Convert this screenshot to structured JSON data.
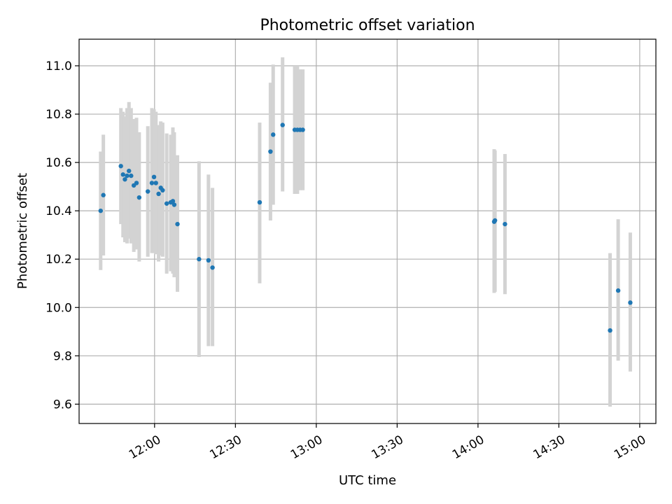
{
  "chart_data": {
    "type": "scatter",
    "title": "Photometric offset variation",
    "xlabel": "UTC time",
    "ylabel": "Photometric offset",
    "xlim": [
      "11:32",
      "15:06"
    ],
    "ylim": [
      9.52,
      11.11
    ],
    "xticks": [
      "12:00",
      "12:30",
      "13:00",
      "13:30",
      "14:00",
      "14:30",
      "15:00"
    ],
    "yticks": [
      9.6,
      9.8,
      10.0,
      10.2,
      10.4,
      10.6,
      10.8,
      11.0
    ],
    "grid": true,
    "point_color": "#1f77b4",
    "errorbar_color": "#d3d3d3",
    "points": [
      {
        "x": "11:40",
        "y": 10.4,
        "ylow": 10.155,
        "yhigh": 10.645
      },
      {
        "x": "11:41",
        "y": 10.465,
        "ylow": 10.215,
        "yhigh": 10.715
      },
      {
        "x": "11:47.5",
        "y": 10.585,
        "ylow": 10.345,
        "yhigh": 10.825
      },
      {
        "x": "11:48.3",
        "y": 10.55,
        "ylow": 10.29,
        "yhigh": 10.81
      },
      {
        "x": "11:49",
        "y": 10.53,
        "ylow": 10.27,
        "yhigh": 10.79
      },
      {
        "x": "11:49.8",
        "y": 10.545,
        "ylow": 10.265,
        "yhigh": 10.825
      },
      {
        "x": "11:50.5",
        "y": 10.565,
        "ylow": 10.285,
        "yhigh": 10.85
      },
      {
        "x": "11:51.3",
        "y": 10.545,
        "ylow": 10.265,
        "yhigh": 10.825
      },
      {
        "x": "11:52.3",
        "y": 10.505,
        "ylow": 10.23,
        "yhigh": 10.78
      },
      {
        "x": "11:53.3",
        "y": 10.515,
        "ylow": 10.24,
        "yhigh": 10.785
      },
      {
        "x": "11:54.3",
        "y": 10.455,
        "ylow": 10.19,
        "yhigh": 10.725
      },
      {
        "x": "11:57.5",
        "y": 10.48,
        "ylow": 10.21,
        "yhigh": 10.75
      },
      {
        "x": "11:59",
        "y": 10.515,
        "ylow": 10.225,
        "yhigh": 10.825
      },
      {
        "x": "11:59.8",
        "y": 10.54,
        "ylow": 10.225,
        "yhigh": 10.82
      },
      {
        "x": "12:00.5",
        "y": 10.515,
        "ylow": 10.22,
        "yhigh": 10.81
      },
      {
        "x": "12:01.5",
        "y": 10.47,
        "ylow": 10.19,
        "yhigh": 10.755
      },
      {
        "x": "12:02.3",
        "y": 10.495,
        "ylow": 10.215,
        "yhigh": 10.77
      },
      {
        "x": "12:03",
        "y": 10.485,
        "ylow": 10.21,
        "yhigh": 10.765
      },
      {
        "x": "12:04.5",
        "y": 10.43,
        "ylow": 10.14,
        "yhigh": 10.72
      },
      {
        "x": "12:06",
        "y": 10.435,
        "ylow": 10.15,
        "yhigh": 10.715
      },
      {
        "x": "12:06.8",
        "y": 10.44,
        "ylow": 10.14,
        "yhigh": 10.745
      },
      {
        "x": "12:07.3",
        "y": 10.425,
        "ylow": 10.125,
        "yhigh": 10.725
      },
      {
        "x": "12:08.5",
        "y": 10.345,
        "ylow": 10.065,
        "yhigh": 10.63
      },
      {
        "x": "12:16.5",
        "y": 10.2,
        "ylow": 9.795,
        "yhigh": 10.605
      },
      {
        "x": "12:20",
        "y": 10.195,
        "ylow": 9.84,
        "yhigh": 10.55
      },
      {
        "x": "12:21.5",
        "y": 10.165,
        "ylow": 9.84,
        "yhigh": 10.495
      },
      {
        "x": "12:39",
        "y": 10.435,
        "ylow": 10.1,
        "yhigh": 10.765
      },
      {
        "x": "12:43",
        "y": 10.645,
        "ylow": 10.36,
        "yhigh": 10.93
      },
      {
        "x": "12:44",
        "y": 10.715,
        "ylow": 10.425,
        "yhigh": 11.005
      },
      {
        "x": "12:47.5",
        "y": 10.755,
        "ylow": 10.48,
        "yhigh": 11.035
      },
      {
        "x": "12:52",
        "y": 10.735,
        "ylow": 10.47,
        "yhigh": 11.0
      },
      {
        "x": "12:53",
        "y": 10.735,
        "ylow": 10.47,
        "yhigh": 11.0
      },
      {
        "x": "12:54",
        "y": 10.735,
        "ylow": 10.485,
        "yhigh": 10.985
      },
      {
        "x": "12:55",
        "y": 10.735,
        "ylow": 10.485,
        "yhigh": 10.985
      },
      {
        "x": "14:06",
        "y": 10.355,
        "ylow": 10.06,
        "yhigh": 10.655
      },
      {
        "x": "14:06.3",
        "y": 10.36,
        "ylow": 10.065,
        "yhigh": 10.65
      },
      {
        "x": "14:10",
        "y": 10.345,
        "ylow": 10.055,
        "yhigh": 10.635
      },
      {
        "x": "14:49",
        "y": 9.905,
        "ylow": 9.59,
        "yhigh": 10.225
      },
      {
        "x": "14:52",
        "y": 10.07,
        "ylow": 9.78,
        "yhigh": 10.365
      },
      {
        "x": "14:56.5",
        "y": 10.02,
        "ylow": 9.735,
        "yhigh": 10.31
      }
    ]
  }
}
